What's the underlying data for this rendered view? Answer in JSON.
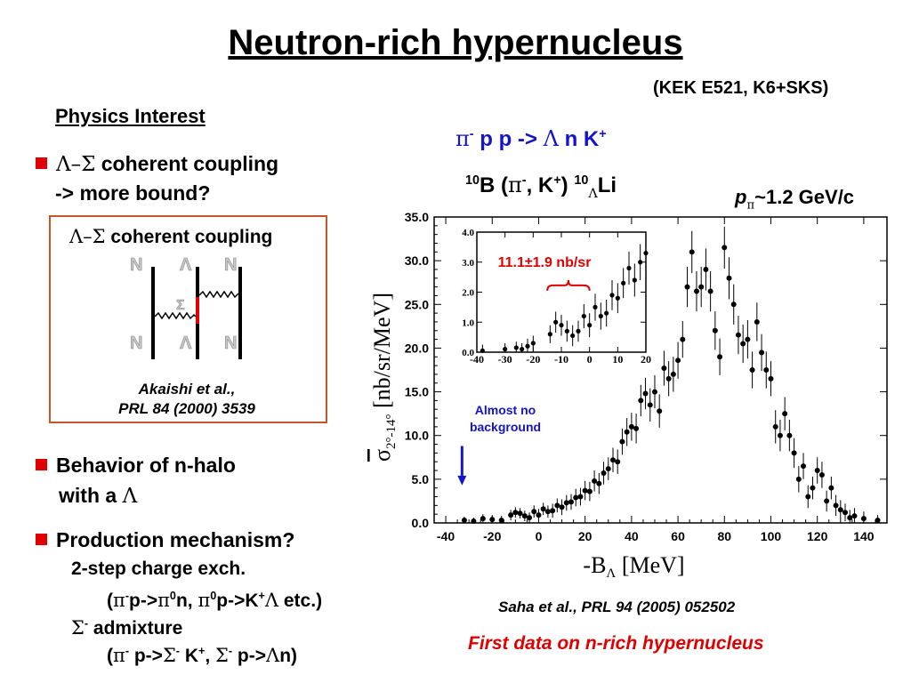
{
  "slide": {
    "title": "Neutron-rich hypernucleus",
    "subtitle": "(KEK E521, K6+SKS)",
    "physics_interest": "Physics Interest",
    "bullet1": {
      "greek": "Λ–Σ",
      "text": " coherent coupling",
      "line2": "->  more bound?"
    },
    "diagram_box": {
      "title_greek": "Λ–Σ",
      "title_text": " coherent coupling",
      "cite1": "Akaishi et al.,",
      "cite2": "PRL 84 (2000) 3539"
    },
    "bullet2": {
      "text": "Behavior of n-halo",
      "line2": "with a ",
      "line2_greek": "Λ"
    },
    "bullet3": {
      "text": "Production mechanism?",
      "sub1": "2-step charge exch.",
      "sub3": " admixture"
    },
    "reaction": "π- p p -> Λ n K+",
    "target": "10B (π-, K+) 10ΛLi",
    "momentum": "pπ~1.2 GeV/c",
    "almost_no": "Almost no",
    "background": "background",
    "inset_label": "11.1±1.9 nb/sr",
    "citation": "Saha et al., PRL 94 (2005) 052502",
    "first_data": "First data on n-rich hypernucleus",
    "colors": {
      "red": "#e00000",
      "blue": "#1414c8",
      "box_border": "#c8542a"
    }
  },
  "chart_data": [
    {
      "type": "scatter",
      "xlabel": "-BΛ [MeV]",
      "ylabel": "σ̄2°-14° [nb/sr/MeV]",
      "xlim": [
        -45,
        150
      ],
      "ylim": [
        0,
        35
      ],
      "x_ticks": [
        "-40",
        "-20",
        "0",
        "20",
        "40",
        "60",
        "80",
        "100",
        "120",
        "140"
      ],
      "y_ticks": [
        "0.0",
        "5.0",
        "10.0",
        "15.0",
        "20.0",
        "25.0",
        "30.0",
        "35.0"
      ],
      "points": [
        [
          -32,
          0.3,
          0.4
        ],
        [
          -28,
          0.2,
          0.4
        ],
        [
          -24,
          0.5,
          0.5
        ],
        [
          -20,
          0.4,
          0.5
        ],
        [
          -16,
          0.3,
          0.5
        ],
        [
          -12,
          0.9,
          0.6
        ],
        [
          -10,
          1.2,
          0.6
        ],
        [
          -8,
          1.1,
          0.6
        ],
        [
          -6,
          0.8,
          0.6
        ],
        [
          -4,
          0.6,
          0.6
        ],
        [
          -2,
          1.3,
          0.7
        ],
        [
          0,
          0.9,
          0.7
        ],
        [
          2,
          1.6,
          0.7
        ],
        [
          4,
          1.3,
          0.7
        ],
        [
          6,
          1.4,
          0.8
        ],
        [
          8,
          2.0,
          0.8
        ],
        [
          10,
          1.8,
          0.9
        ],
        [
          12,
          2.3,
          0.9
        ],
        [
          14,
          2.4,
          0.9
        ],
        [
          16,
          2.9,
          1.0
        ],
        [
          18,
          3.0,
          1.0
        ],
        [
          20,
          3.7,
          1.1
        ],
        [
          22,
          3.6,
          1.1
        ],
        [
          24,
          4.8,
          1.2
        ],
        [
          26,
          4.5,
          1.2
        ],
        [
          28,
          5.7,
          1.3
        ],
        [
          30,
          6.2,
          1.3
        ],
        [
          32,
          7.2,
          1.4
        ],
        [
          34,
          7.0,
          1.4
        ],
        [
          36,
          9.3,
          1.5
        ],
        [
          38,
          10.4,
          1.6
        ],
        [
          40,
          11.0,
          1.6
        ],
        [
          42,
          10.8,
          1.7
        ],
        [
          44,
          14.0,
          1.8
        ],
        [
          46,
          14.8,
          1.8
        ],
        [
          48,
          13.5,
          1.9
        ],
        [
          50,
          15.0,
          1.9
        ],
        [
          52,
          12.8,
          1.9
        ],
        [
          54,
          17.7,
          2.0
        ],
        [
          56,
          16.5,
          2.0
        ],
        [
          58,
          17.0,
          2.0
        ],
        [
          60,
          18.6,
          2.1
        ],
        [
          62,
          21.0,
          2.1
        ],
        [
          64,
          27.0,
          2.3
        ],
        [
          66,
          31.0,
          2.4
        ],
        [
          68,
          26.5,
          2.3
        ],
        [
          70,
          27.0,
          2.3
        ],
        [
          72,
          29.0,
          2.4
        ],
        [
          74,
          26.5,
          2.3
        ],
        [
          76,
          22.0,
          2.2
        ],
        [
          78,
          19.0,
          2.1
        ],
        [
          80,
          31.5,
          2.4
        ],
        [
          82,
          28.0,
          2.4
        ],
        [
          84,
          25.0,
          2.3
        ],
        [
          86,
          21.5,
          2.2
        ],
        [
          88,
          20.5,
          2.2
        ],
        [
          90,
          21.0,
          2.2
        ],
        [
          92,
          17.5,
          2.1
        ],
        [
          94,
          23.0,
          2.2
        ],
        [
          96,
          19.5,
          2.1
        ],
        [
          98,
          17.5,
          2.1
        ],
        [
          100,
          16.5,
          2.0
        ],
        [
          102,
          11.0,
          1.9
        ],
        [
          104,
          10.0,
          1.8
        ],
        [
          106,
          12.5,
          1.9
        ],
        [
          108,
          10.0,
          1.8
        ],
        [
          110,
          8.0,
          1.7
        ],
        [
          112,
          5.0,
          1.5
        ],
        [
          114,
          6.5,
          1.5
        ],
        [
          116,
          3.0,
          1.3
        ],
        [
          118,
          4.0,
          1.3
        ],
        [
          120,
          6.0,
          1.5
        ],
        [
          122,
          5.5,
          1.5
        ],
        [
          124,
          2.5,
          1.2
        ],
        [
          126,
          4.0,
          1.3
        ],
        [
          128,
          2.0,
          1.2
        ],
        [
          130,
          1.5,
          1.1
        ],
        [
          132,
          1.2,
          1.0
        ],
        [
          134,
          0.6,
          0.9
        ],
        [
          136,
          0.8,
          0.9
        ],
        [
          140,
          0.5,
          0.8
        ],
        [
          146,
          0.3,
          0.6
        ]
      ]
    },
    {
      "type": "scatter",
      "xlim": [
        -40,
        20
      ],
      "ylim": [
        0,
        4
      ],
      "x_ticks": [
        "-40",
        "-30",
        "-20",
        "-10",
        "0",
        "10",
        "20"
      ],
      "y_ticks": [
        "0.0",
        "1.0",
        "2.0",
        "3.0",
        "4.0"
      ],
      "points": [
        [
          -38,
          0.05,
          0.2
        ],
        [
          -30,
          0.1,
          0.2
        ],
        [
          -26,
          0.15,
          0.2
        ],
        [
          -24,
          0.1,
          0.2
        ],
        [
          -22,
          0.2,
          0.25
        ],
        [
          -20,
          0.3,
          0.25
        ],
        [
          -14,
          0.6,
          0.3
        ],
        [
          -12,
          1.0,
          0.35
        ],
        [
          -10,
          0.9,
          0.35
        ],
        [
          -8,
          0.7,
          0.35
        ],
        [
          -6,
          0.55,
          0.35
        ],
        [
          -4,
          0.7,
          0.35
        ],
        [
          -2,
          1.2,
          0.4
        ],
        [
          0,
          0.9,
          0.4
        ],
        [
          2,
          1.5,
          0.45
        ],
        [
          4,
          1.2,
          0.45
        ],
        [
          6,
          1.3,
          0.45
        ],
        [
          8,
          1.9,
          0.5
        ],
        [
          10,
          1.8,
          0.5
        ],
        [
          12,
          2.3,
          0.5
        ],
        [
          14,
          2.8,
          0.55
        ],
        [
          16,
          2.4,
          0.55
        ],
        [
          18,
          3.0,
          0.6
        ],
        [
          20,
          3.3,
          0.6
        ]
      ]
    }
  ]
}
